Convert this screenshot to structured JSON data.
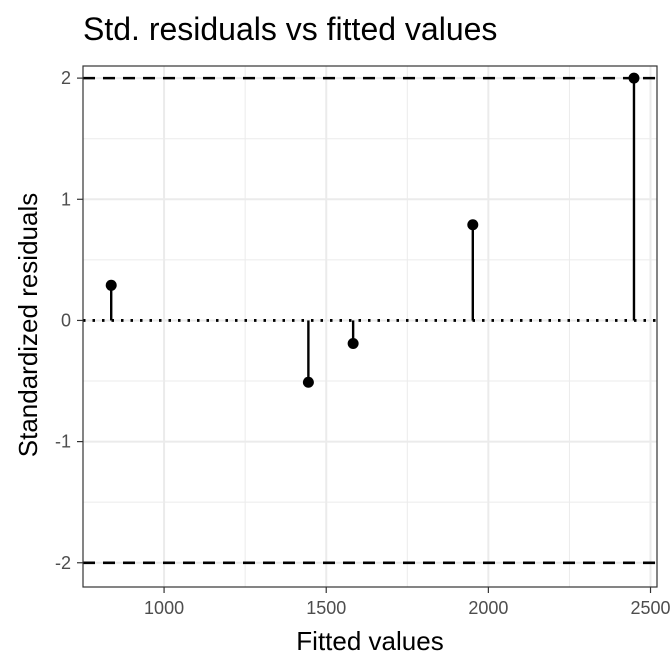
{
  "chart_data": {
    "type": "scatter",
    "title": "Std. residuals vs fitted values",
    "xlabel": "Fitted values",
    "ylabel": "Standardized residuals",
    "xlim": [
      750,
      2520
    ],
    "ylim": [
      -2.2,
      2.1
    ],
    "xticks": [
      1000,
      1500,
      2000,
      2500
    ],
    "xtick_labels": [
      "1000",
      "1500",
      "2000",
      "2500"
    ],
    "yticks": [
      -2,
      -1,
      0,
      1,
      2
    ],
    "ytick_labels": [
      "-2",
      "-1",
      "0",
      "1",
      "2"
    ],
    "x_minor_ticks": [
      750,
      1250,
      1750,
      2250
    ],
    "y_minor_ticks": [
      -1.5,
      -0.5,
      0.5,
      1.5
    ],
    "grid": true,
    "legend": "none",
    "reference_lines": [
      {
        "y": 2,
        "style": "dashed"
      },
      {
        "y": -2,
        "style": "dashed"
      },
      {
        "y": 0,
        "style": "dotted"
      }
    ],
    "series": [
      {
        "x": [
          837,
          1445,
          1583,
          1952,
          2449
        ],
        "y": [
          0.29,
          -0.51,
          -0.19,
          0.79,
          2.0
        ]
      }
    ],
    "colors": {
      "points": "#000000",
      "grid": "#ebebeb",
      "panel_border": "#333333",
      "tick_text": "#4d4d4d"
    }
  }
}
